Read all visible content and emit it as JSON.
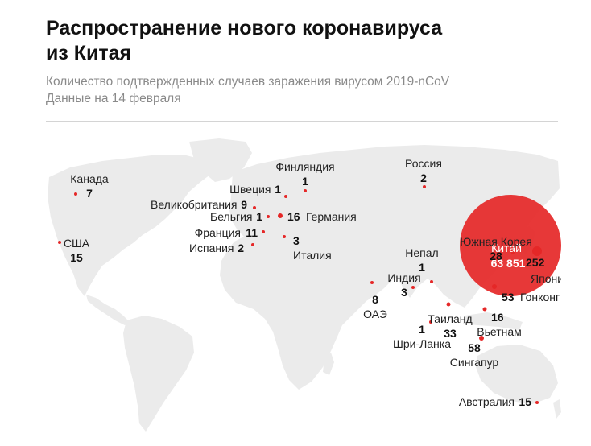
{
  "title_line1": "Распространение нового коронавируса",
  "title_line2": "из Китая",
  "subtitle_line1": "Количество подтвержденных случаев заражения вирусом 2019-nCoV",
  "subtitle_line2": "Данные на 14 февраля",
  "colors": {
    "marker": "#e52727",
    "land": "#ebebeb",
    "text": "#222222",
    "subtitle": "#8a8a8a"
  },
  "points": [
    {
      "name": "Китай",
      "count": "63 851",
      "cases": 63851
    },
    {
      "name": "Япония",
      "count": "252",
      "cases": 252
    },
    {
      "name": "Сингапур",
      "count": "58",
      "cases": 58
    },
    {
      "name": "Гонконг",
      "count": "53",
      "cases": 53
    },
    {
      "name": "Таиланд",
      "count": "33",
      "cases": 33
    },
    {
      "name": "Южная Корея",
      "count": "28",
      "cases": 28
    },
    {
      "name": "Германия",
      "count": "16",
      "cases": 16
    },
    {
      "name": "Вьетнам",
      "count": "16",
      "cases": 16
    },
    {
      "name": "США",
      "count": "15",
      "cases": 15
    },
    {
      "name": "Австралия",
      "count": "15",
      "cases": 15
    },
    {
      "name": "Франция",
      "count": "11",
      "cases": 11
    },
    {
      "name": "Великобритания",
      "count": "9",
      "cases": 9
    },
    {
      "name": "ОАЭ",
      "count": "8",
      "cases": 8
    },
    {
      "name": "Канада",
      "count": "7",
      "cases": 7
    },
    {
      "name": "Индия",
      "count": "3",
      "cases": 3
    },
    {
      "name": "Италия",
      "count": "3",
      "cases": 3
    },
    {
      "name": "Россия",
      "count": "2",
      "cases": 2
    },
    {
      "name": "Испания",
      "count": "2",
      "cases": 2
    },
    {
      "name": "Финляндия",
      "count": "1",
      "cases": 1
    },
    {
      "name": "Швеция",
      "count": "1",
      "cases": 1
    },
    {
      "name": "Бельгия",
      "count": "1",
      "cases": 1
    },
    {
      "name": "Непал",
      "count": "1",
      "cases": 1
    },
    {
      "name": "Шри-Ланка",
      "count": "1",
      "cases": 1
    }
  ]
}
